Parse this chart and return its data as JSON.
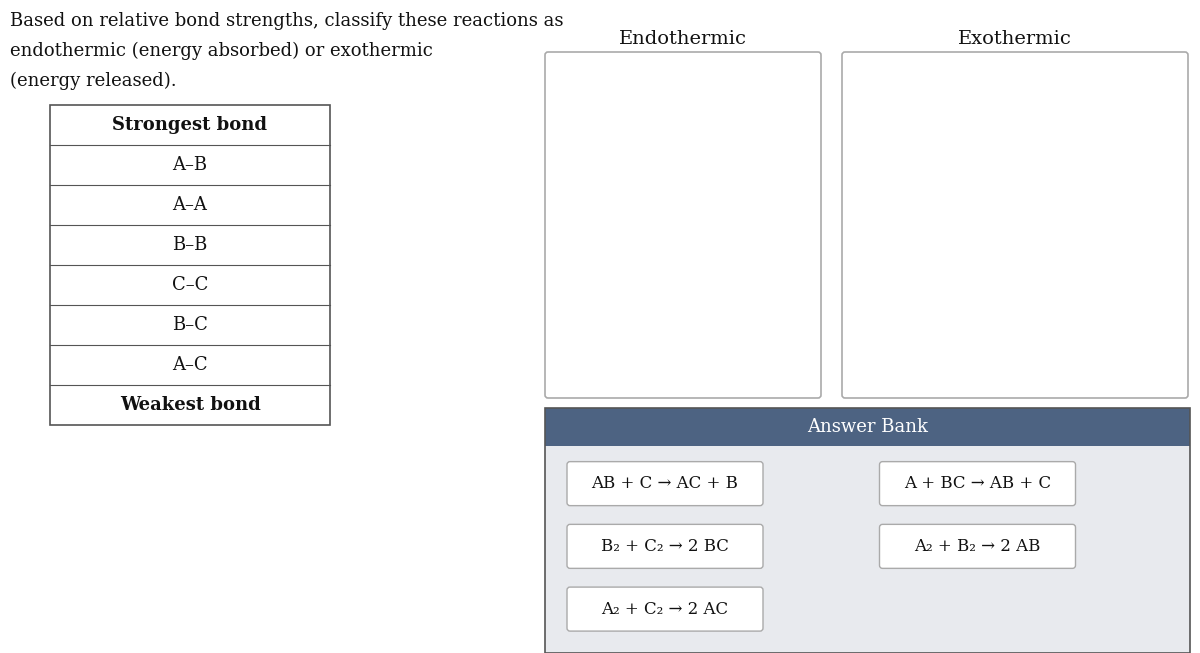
{
  "bg_color": "#ffffff",
  "question_text": [
    "Based on relative bond strengths, classify these reactions as",
    "endothermic (energy absorbed) or exothermic",
    "(energy released)."
  ],
  "table_rows": [
    "Strongest bond",
    "A–B",
    "A–A",
    "B–B",
    "C–C",
    "B–C",
    "A–C",
    "Weakest bond"
  ],
  "col1_label": "Endothermic",
  "col2_label": "Exothermic",
  "answer_bank_header": "Answer Bank",
  "answer_bank_bg": "#4d6382",
  "answer_bank_body_bg": "#e8eaee",
  "reactions": [
    {
      "text": "AB + C → AC + B",
      "row": 0,
      "col": 0
    },
    {
      "text": "A + BC → AB + C",
      "row": 0,
      "col": 1
    },
    {
      "text": "B₂ + C₂ → 2 BC",
      "row": 1,
      "col": 0
    },
    {
      "text": "A₂ + B₂ → 2 AB",
      "row": 1,
      "col": 1
    },
    {
      "text": "A₂ + C₂ → 2 AC",
      "row": 2,
      "col": 0
    }
  ],
  "reaction_box_color": "#ffffff",
  "reaction_border_color": "#aaaaaa"
}
